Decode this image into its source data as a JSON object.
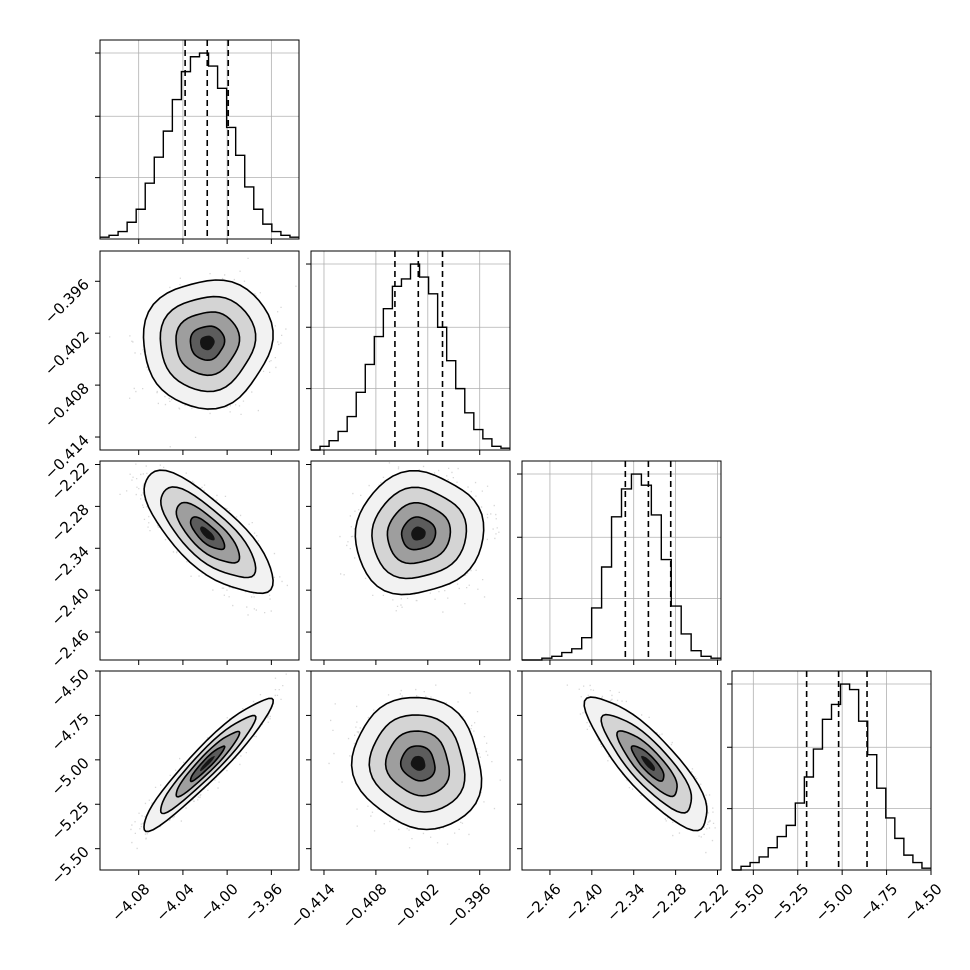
{
  "chart_data": {
    "type": "corner",
    "grid": true,
    "quantile_lines": "dashed",
    "variables": [
      {
        "range": [
          -4.115,
          -3.935
        ],
        "mean": -4.018,
        "sd": 0.022,
        "quantiles": [
          -4.038,
          -4.018,
          -3.999
        ],
        "ticks": [
          -4.08,
          -4.04,
          -4.0,
          -3.96
        ],
        "tick_labels": [
          "−4.08",
          "−4.04",
          "−4.00",
          "−3.96"
        ]
      },
      {
        "range": [
          -0.4155,
          -0.3925
        ],
        "mean": -0.4031,
        "sd": 0.0028,
        "quantiles": [
          -0.4058,
          -0.4031,
          -0.4003
        ],
        "ticks": [
          -0.414,
          -0.408,
          -0.402,
          -0.396
        ],
        "tick_labels": [
          "−0.414",
          "−0.408",
          "−0.402",
          "−0.396"
        ]
      },
      {
        "range": [
          -2.5,
          -2.215
        ],
        "mean": -2.319,
        "sd": 0.033,
        "quantiles": [
          -2.352,
          -2.319,
          -2.287
        ],
        "ticks": [
          -2.46,
          -2.4,
          -2.34,
          -2.28,
          -2.22
        ],
        "tick_labels": [
          "−2.46",
          "−2.40",
          "−2.34",
          "−2.28",
          "−2.22"
        ]
      },
      {
        "range": [
          -5.62,
          -4.5
        ],
        "mean": -5.02,
        "sd": 0.14,
        "quantiles": [
          -5.2,
          -5.02,
          -4.86
        ],
        "ticks": [
          -5.5,
          -5.25,
          -5.0,
          -4.75,
          -4.5
        ],
        "tick_labels": [
          "−5.50",
          "−5.25",
          "−5.00",
          "−4.75",
          "−4.50"
        ]
      }
    ],
    "histograms": [
      {
        "variable": 0,
        "counts": [
          0.01,
          0.02,
          0.04,
          0.09,
          0.16,
          0.3,
          0.44,
          0.58,
          0.75,
          0.9,
          0.98,
          1.0,
          0.93,
          0.81,
          0.6,
          0.45,
          0.28,
          0.16,
          0.08,
          0.04,
          0.02,
          0.01
        ]
      },
      {
        "variable": 1,
        "counts": [
          0.0,
          0.02,
          0.05,
          0.1,
          0.18,
          0.31,
          0.46,
          0.61,
          0.76,
          0.88,
          0.92,
          1.0,
          0.93,
          0.84,
          0.66,
          0.48,
          0.33,
          0.2,
          0.11,
          0.06,
          0.02,
          0.01
        ]
      },
      {
        "variable": 2,
        "counts": [
          0.0,
          0.0,
          0.01,
          0.02,
          0.04,
          0.06,
          0.12,
          0.28,
          0.5,
          0.77,
          0.92,
          1.0,
          0.94,
          0.78,
          0.54,
          0.29,
          0.14,
          0.05,
          0.02,
          0.01
        ]
      },
      {
        "variable": 3,
        "counts": [
          0.0,
          0.02,
          0.04,
          0.07,
          0.12,
          0.18,
          0.24,
          0.36,
          0.5,
          0.65,
          0.81,
          0.89,
          1.0,
          0.97,
          0.8,
          0.62,
          0.44,
          0.28,
          0.17,
          0.08,
          0.04,
          0.01
        ]
      }
    ],
    "correlations": [
      {
        "x": 0,
        "y": 1,
        "rho": 0.05
      },
      {
        "x": 0,
        "y": 2,
        "rho": -0.75
      },
      {
        "x": 1,
        "y": 2,
        "rho": 0.05
      },
      {
        "x": 0,
        "y": 3,
        "rho": 0.94
      },
      {
        "x": 1,
        "y": 3,
        "rho": -0.1
      },
      {
        "x": 2,
        "y": 3,
        "rho": -0.83
      }
    ]
  }
}
